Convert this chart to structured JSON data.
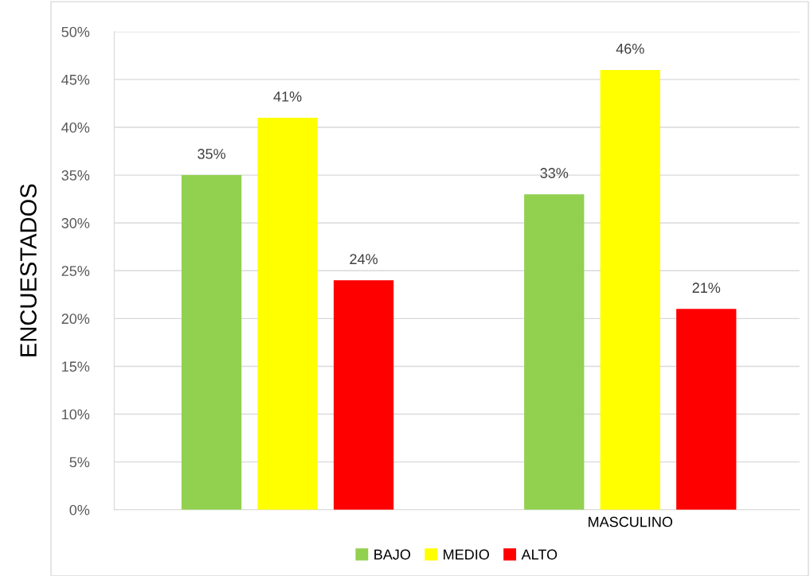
{
  "chart_data": {
    "type": "bar",
    "ylabel": "ENCUESTADOS",
    "categories": [
      null,
      "MASCULINO"
    ],
    "series": [
      {
        "name": "BAJO",
        "color": "#92d050",
        "values": [
          35,
          33
        ],
        "value_labels": [
          "35%",
          "33%"
        ]
      },
      {
        "name": "MEDIO",
        "color": "#ffff00",
        "values": [
          41,
          46
        ],
        "value_labels": [
          "41%",
          "46%"
        ]
      },
      {
        "name": "ALTO",
        "color": "#ff0000",
        "values": [
          24,
          21
        ],
        "value_labels": [
          "24%",
          "21%"
        ]
      }
    ],
    "ylim": [
      0,
      50
    ],
    "yticks": [
      {
        "value": 0,
        "label": "0%"
      },
      {
        "value": 5,
        "label": "5%"
      },
      {
        "value": 10,
        "label": "10%"
      },
      {
        "value": 15,
        "label": "15%"
      },
      {
        "value": 20,
        "label": "20%"
      },
      {
        "value": 25,
        "label": "25%"
      },
      {
        "value": 30,
        "label": "30%"
      },
      {
        "value": 35,
        "label": "35%"
      },
      {
        "value": 40,
        "label": "40%"
      },
      {
        "value": 45,
        "label": "45%"
      },
      {
        "value": 50,
        "label": "50%"
      }
    ],
    "grid": "y",
    "legend": "bottom"
  }
}
